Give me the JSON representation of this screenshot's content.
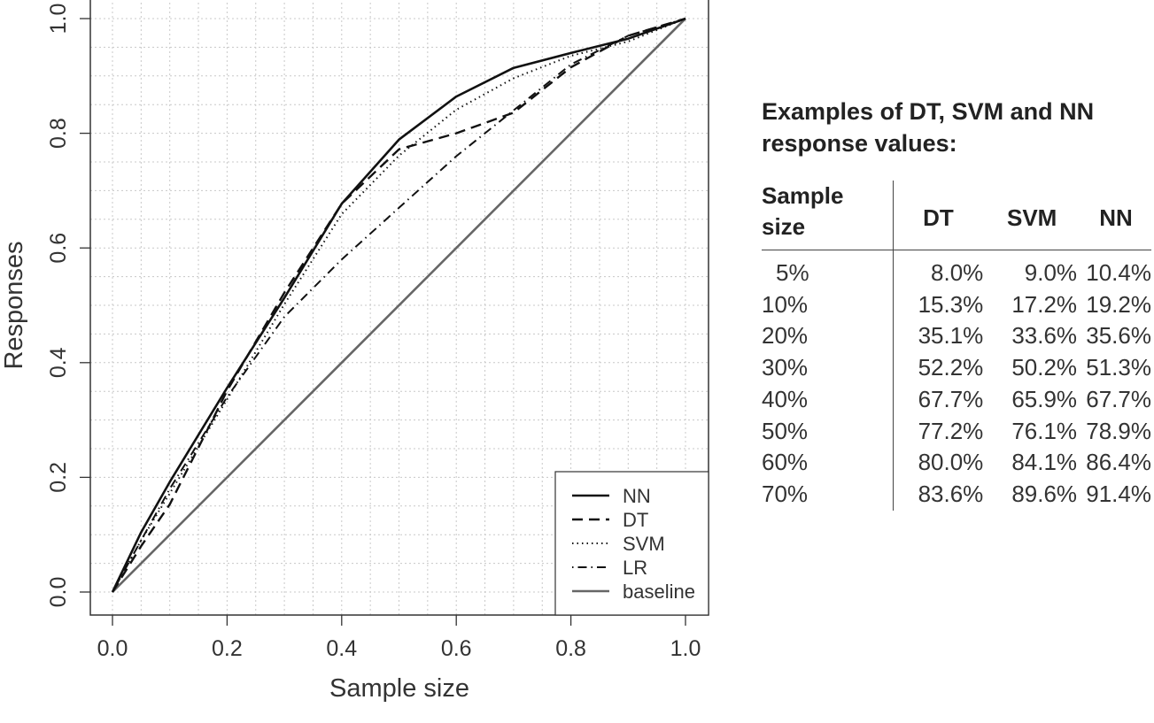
{
  "chart_data": {
    "type": "line",
    "xlabel": "Sample size",
    "ylabel": "Responses",
    "xlim": [
      0,
      1
    ],
    "ylim": [
      0,
      1
    ],
    "x_ticks": [
      "0.0",
      "0.2",
      "0.4",
      "0.6",
      "0.8",
      "1.0"
    ],
    "y_ticks": [
      "0.0",
      "0.2",
      "0.4",
      "0.6",
      "0.8",
      "1.0"
    ],
    "grid": true,
    "legend_position": "bottom-right",
    "series": [
      {
        "name": "NN",
        "style": "solid",
        "color": "#111111",
        "x": [
          0,
          0.05,
          0.1,
          0.2,
          0.3,
          0.4,
          0.5,
          0.6,
          0.7,
          0.8,
          0.9,
          1.0
        ],
        "y": [
          0,
          0.104,
          0.192,
          0.356,
          0.513,
          0.677,
          0.789,
          0.864,
          0.914,
          0.94,
          0.965,
          1.0
        ]
      },
      {
        "name": "DT",
        "style": "dashed",
        "color": "#111111",
        "x": [
          0,
          0.05,
          0.1,
          0.2,
          0.3,
          0.4,
          0.5,
          0.6,
          0.7,
          0.8,
          0.9,
          1.0
        ],
        "y": [
          0,
          0.08,
          0.153,
          0.351,
          0.522,
          0.677,
          0.772,
          0.8,
          0.836,
          0.915,
          0.97,
          1.0
        ]
      },
      {
        "name": "SVM",
        "style": "dotted",
        "color": "#111111",
        "x": [
          0,
          0.05,
          0.1,
          0.2,
          0.3,
          0.4,
          0.5,
          0.6,
          0.7,
          0.8,
          0.9,
          1.0
        ],
        "y": [
          0,
          0.09,
          0.172,
          0.336,
          0.502,
          0.659,
          0.761,
          0.841,
          0.896,
          0.935,
          0.96,
          1.0
        ]
      },
      {
        "name": "LR",
        "style": "dotdash",
        "color": "#111111",
        "x": [
          0,
          0.05,
          0.1,
          0.2,
          0.3,
          0.4,
          0.5,
          0.6,
          0.7,
          0.8,
          0.9,
          1.0
        ],
        "y": [
          0,
          0.09,
          0.18,
          0.34,
          0.48,
          0.58,
          0.67,
          0.76,
          0.84,
          0.92,
          0.97,
          1.0
        ]
      },
      {
        "name": "baseline",
        "style": "solid",
        "color": "#666666",
        "x": [
          0,
          1
        ],
        "y": [
          0,
          1
        ]
      }
    ]
  },
  "table": {
    "title": "Examples of DT, SVM and NN response values:",
    "headers": [
      "Sample size",
      "DT",
      "SVM",
      "NN"
    ],
    "rows": [
      [
        "5%",
        "8.0%",
        "9.0%",
        "10.4%"
      ],
      [
        "10%",
        "15.3%",
        "17.2%",
        "19.2%"
      ],
      [
        "20%",
        "35.1%",
        "33.6%",
        "35.6%"
      ],
      [
        "30%",
        "52.2%",
        "50.2%",
        "51.3%"
      ],
      [
        "40%",
        "67.7%",
        "65.9%",
        "67.7%"
      ],
      [
        "50%",
        "77.2%",
        "76.1%",
        "78.9%"
      ],
      [
        "60%",
        "80.0%",
        "84.1%",
        "86.4%"
      ],
      [
        "70%",
        "83.6%",
        "89.6%",
        "91.4%"
      ]
    ]
  }
}
